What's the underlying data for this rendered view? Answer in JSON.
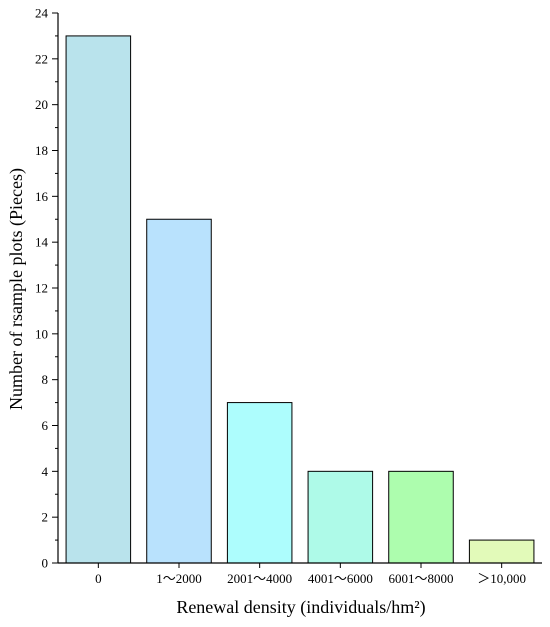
{
  "chart_data": {
    "type": "bar",
    "categories": [
      "0",
      "1～2000",
      "2001～4000",
      "4001～6000",
      "6001～8000",
      "＞10,000"
    ],
    "values": [
      23,
      15,
      7,
      4,
      4,
      1
    ],
    "bar_colors": [
      "#b9e3ec",
      "#b9e2fd",
      "#adfdfd",
      "#aefae8",
      "#adfdae",
      "#e2fab9"
    ],
    "xlabel": "Renewal density (individuals/hm²)",
    "ylabel": "Number of rsample plots (Pieces)",
    "ylim": [
      0,
      24
    ],
    "yticks": [
      0,
      2,
      4,
      6,
      8,
      10,
      12,
      14,
      16,
      18,
      20,
      22,
      24
    ],
    "grid": false,
    "legend": "none"
  }
}
